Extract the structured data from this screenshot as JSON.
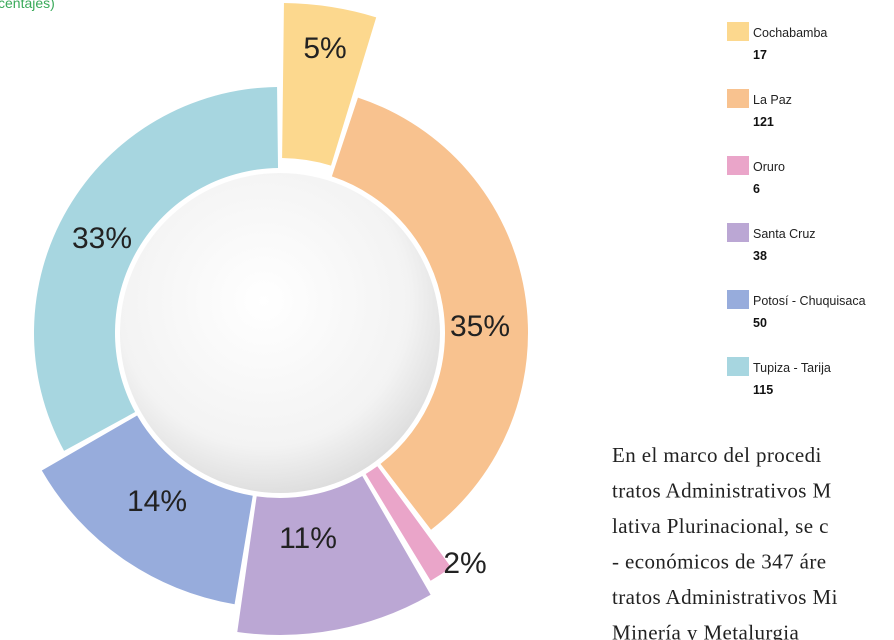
{
  "chart_data": {
    "type": "donut",
    "subtitle": "centajes)",
    "categories": [
      "Cochabamba",
      "La Paz",
      "Oruro",
      "Santa Cruz",
      "Potosí - Chuquisaca",
      "Tupiza - Tarija"
    ],
    "values": [
      17,
      121,
      6,
      38,
      50,
      115
    ],
    "value_labels": [
      "5%",
      "35%",
      "2%",
      "11%",
      "14%",
      "33%"
    ],
    "colors": [
      "#fcd88e",
      "#f8c28f",
      "#eaa5c9",
      "#bba7d4",
      "#97acdc",
      "#a7d6e0"
    ]
  },
  "text": {
    "lines": [
      "En el marco del procedi",
      "tratos Administrativos M",
      "lativa Plurinacional, se c",
      "- económicos de 347 áre",
      "tratos Administrativos Mi",
      "Minería y Metalurgia"
    ]
  }
}
